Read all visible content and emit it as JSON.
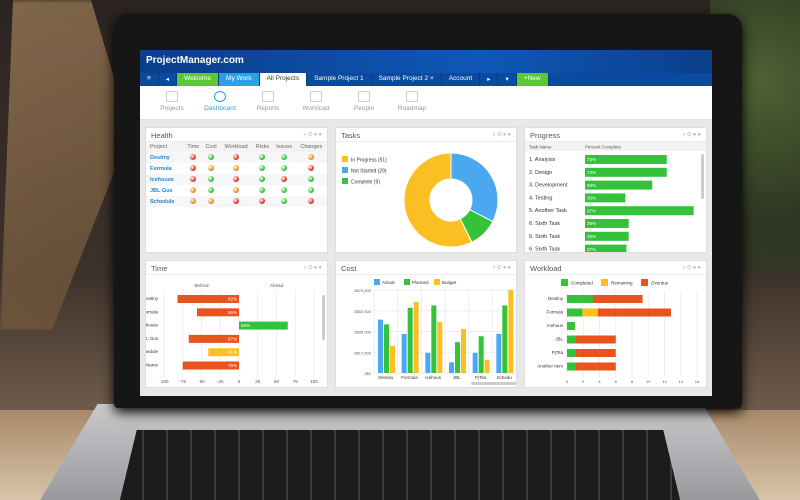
{
  "app": {
    "logo": "ProjectManager.com"
  },
  "tabs": [
    {
      "label": "≡",
      "style": ""
    },
    {
      "label": "◂",
      "style": ""
    },
    {
      "label": "Welcome",
      "style": "green"
    },
    {
      "label": "My Work",
      "style": "blue"
    },
    {
      "label": "All Projects",
      "style": "white"
    },
    {
      "label": "Sample Project 1",
      "style": ""
    },
    {
      "label": "Sample Project 2 ×",
      "style": ""
    },
    {
      "label": "Account",
      "style": ""
    },
    {
      "label": "▸",
      "style": ""
    },
    {
      "label": "▾",
      "style": ""
    },
    {
      "label": "+New",
      "style": "green"
    }
  ],
  "nav": [
    {
      "label": "Projects",
      "active": false
    },
    {
      "label": "Dashboard",
      "active": true
    },
    {
      "label": "Reports",
      "active": false
    },
    {
      "label": "Workload",
      "active": false
    },
    {
      "label": "People",
      "active": false
    },
    {
      "label": "Roadmap",
      "active": false
    }
  ],
  "colors": {
    "red": "#e23a1e",
    "green": "#34c23a",
    "orange": "#f08a1c",
    "yellow": "#fbbf24",
    "blue": "#4aa8f0"
  },
  "health": {
    "title": "Health",
    "columns": [
      "Project",
      "Time",
      "Cost",
      "Workload",
      "Risks",
      "Issues",
      "Changes"
    ],
    "rows": [
      {
        "project": "Destiny",
        "status": [
          "red",
          "green",
          "red",
          "green",
          "green",
          "orange"
        ]
      },
      {
        "project": "Formula",
        "status": [
          "red",
          "orange",
          "orange",
          "green",
          "green",
          "red"
        ]
      },
      {
        "project": "Icehouse",
        "status": [
          "red",
          "green",
          "red",
          "green",
          "red",
          "green"
        ]
      },
      {
        "project": "JBL Gus",
        "status": [
          "orange",
          "green",
          "orange",
          "green",
          "green",
          "green"
        ]
      },
      {
        "project": "Schedule",
        "status": [
          "orange",
          "orange",
          "red",
          "red",
          "green",
          "red"
        ]
      }
    ]
  },
  "tasks": {
    "title": "Tasks",
    "chart_data": {
      "type": "pie",
      "donut": true,
      "categories": [
        "In Progress (51)",
        "Not Started (29)",
        "Complete (9)"
      ],
      "values": [
        51,
        29,
        9
      ],
      "colors": [
        "#fbbf24",
        "#4aa8f0",
        "#34c23a"
      ],
      "legend": "left"
    }
  },
  "progress": {
    "title": "Progress",
    "columns": [
      "Task Name",
      "Percent Complete"
    ],
    "rows": [
      {
        "task": "1. Analysis",
        "pct": 73
      },
      {
        "task": "2. Design",
        "pct": 73
      },
      {
        "task": "3. Development",
        "pct": 60
      },
      {
        "task": "4. Testing",
        "pct": 36
      },
      {
        "task": "5. Another Task",
        "pct": 97
      },
      {
        "task": "6. Sixth Task",
        "pct": 39
      },
      {
        "task": "6. Sixth Task",
        "pct": 39
      },
      {
        "task": "6. Sixth Task",
        "pct": 37
      }
    ]
  },
  "time": {
    "title": "Time",
    "chart_data": {
      "type": "bar",
      "orientation": "horizontal",
      "header_left": "Behind",
      "header_right": "Ahead",
      "categories": [
        "Destiny",
        "Formula",
        "Icehouse",
        "JBL Gus",
        "Schedule",
        "Project Name"
      ],
      "values": [
        -82,
        -56,
        65,
        -67,
        -41,
        -75
      ],
      "labels": [
        "82%",
        "56%",
        "65%",
        "67%",
        "41%",
        "75%"
      ],
      "colors": [
        "#e8531e",
        "#e8531e",
        "#34c23a",
        "#e8531e",
        "#fbbf24",
        "#e8531e"
      ],
      "xlim": [
        -100,
        100
      ],
      "xticks": [
        "-100",
        "-75",
        "-50",
        "-25",
        "0",
        "25",
        "50",
        "75",
        "100"
      ]
    }
  },
  "cost": {
    "title": "Cost",
    "chart_data": {
      "type": "bar",
      "categories": [
        "Destiny",
        "Formula",
        "Icehous",
        "JBL",
        "PjTita",
        "Schedu"
      ],
      "series": [
        {
          "name": "Actual",
          "values": [
            45000,
            33000,
            17000,
            9000,
            17000,
            33000
          ]
        },
        {
          "name": "Planned",
          "values": [
            41000,
            55000,
            57000,
            26000,
            31000,
            57000
          ]
        },
        {
          "name": "Budget",
          "values": [
            23000,
            60000,
            43000,
            37000,
            11000,
            70000
          ]
        }
      ],
      "colors": [
        "#4aa8f0",
        "#34c23a",
        "#fbbf24"
      ],
      "ylim": [
        0,
        70000
      ],
      "yticks": [
        "Z$0",
        "Z$17,500",
        "Z$35,000",
        "Z$52,500",
        "Z$70,000"
      ],
      "legend": "top"
    }
  },
  "workload": {
    "title": "Workload",
    "chart_data": {
      "type": "bar",
      "orientation": "horizontal",
      "stacked": true,
      "categories": [
        "Destiny",
        "Formula",
        "Icehous",
        "JBL",
        "PjTita",
        "Another Item"
      ],
      "series": [
        {
          "name": "Completed",
          "values": [
            3.2,
            1.9,
            1,
            1,
            1,
            1
          ]
        },
        {
          "name": "Remaining",
          "values": [
            0,
            1.9,
            0,
            0,
            0,
            0
          ]
        },
        {
          "name": "Overdue",
          "values": [
            6.1,
            9,
            0,
            5,
            5,
            5
          ]
        }
      ],
      "colors": [
        "#34c23a",
        "#fbbf24",
        "#e8531e"
      ],
      "xlim": [
        0,
        16
      ],
      "xticks": [
        "0",
        "2",
        "4",
        "6",
        "8",
        "10",
        "12",
        "14",
        "16"
      ],
      "legend": "top"
    }
  }
}
